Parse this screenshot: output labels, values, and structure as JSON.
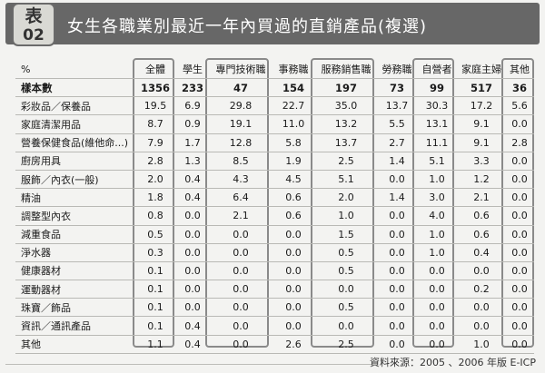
{
  "badge": {
    "top": "表",
    "number": "02"
  },
  "title": "女生各職業別最近一年內買過的直銷產品(複選)",
  "source": "資料來源：2005 、2006 年版 E-ICP",
  "table": {
    "corner": "%",
    "columns": [
      "全體",
      "學生",
      "專門技術職",
      "事務職",
      "服務銷售職",
      "勞務職",
      "自營者",
      "家庭主婦",
      "其他"
    ],
    "rows": [
      {
        "label": "樣本數",
        "values": [
          "1356",
          "233",
          "47",
          "154",
          "197",
          "73",
          "99",
          "517",
          "36"
        ]
      },
      {
        "label": "彩妝品／保養品",
        "values": [
          "19.5",
          "6.9",
          "29.8",
          "22.7",
          "35.0",
          "13.7",
          "30.3",
          "17.2",
          "5.6"
        ]
      },
      {
        "label": "家庭清潔用品",
        "values": [
          "8.7",
          "0.9",
          "19.1",
          "11.0",
          "13.2",
          "5.5",
          "13.1",
          "9.1",
          "0.0"
        ]
      },
      {
        "label": "營養保健食品(維他命...)",
        "values": [
          "7.9",
          "1.7",
          "12.8",
          "5.8",
          "13.7",
          "2.7",
          "11.1",
          "9.1",
          "2.8"
        ]
      },
      {
        "label": "廚房用具",
        "values": [
          "2.8",
          "1.3",
          "8.5",
          "1.9",
          "2.5",
          "1.4",
          "5.1",
          "3.3",
          "0.0"
        ]
      },
      {
        "label": "服飾／內衣(一般)",
        "values": [
          "2.0",
          "0.4",
          "4.3",
          "4.5",
          "5.1",
          "0.0",
          "1.0",
          "1.2",
          "0.0"
        ]
      },
      {
        "label": "精油",
        "values": [
          "1.8",
          "0.4",
          "6.4",
          "0.6",
          "2.0",
          "1.4",
          "3.0",
          "2.1",
          "0.0"
        ]
      },
      {
        "label": "調整型內衣",
        "values": [
          "0.8",
          "0.0",
          "2.1",
          "0.6",
          "1.0",
          "0.0",
          "4.0",
          "0.6",
          "0.0"
        ]
      },
      {
        "label": "減重食品",
        "values": [
          "0.5",
          "0.0",
          "0.0",
          "0.0",
          "1.5",
          "0.0",
          "1.0",
          "0.6",
          "0.0"
        ]
      },
      {
        "label": "淨水器",
        "values": [
          "0.3",
          "0.0",
          "0.0",
          "0.0",
          "0.5",
          "0.0",
          "1.0",
          "0.4",
          "0.0"
        ]
      },
      {
        "label": "健康器材",
        "values": [
          "0.1",
          "0.0",
          "0.0",
          "0.0",
          "0.5",
          "0.0",
          "0.0",
          "0.0",
          "0.0"
        ]
      },
      {
        "label": "運動器材",
        "values": [
          "0.1",
          "0.0",
          "0.0",
          "0.0",
          "0.0",
          "0.0",
          "0.0",
          "0.2",
          "0.0"
        ]
      },
      {
        "label": "珠寶／飾品",
        "values": [
          "0.1",
          "0.0",
          "0.0",
          "0.0",
          "0.5",
          "0.0",
          "0.0",
          "0.0",
          "0.0"
        ]
      },
      {
        "label": "資訊／通訊產品",
        "values": [
          "0.1",
          "0.4",
          "0.0",
          "0.0",
          "0.0",
          "0.0",
          "0.0",
          "0.0",
          "0.0"
        ]
      },
      {
        "label": "其他",
        "values": [
          "1.1",
          "0.4",
          "0.0",
          "2.6",
          "2.5",
          "0.0",
          "0.0",
          "1.0",
          "0.0"
        ]
      }
    ]
  }
}
